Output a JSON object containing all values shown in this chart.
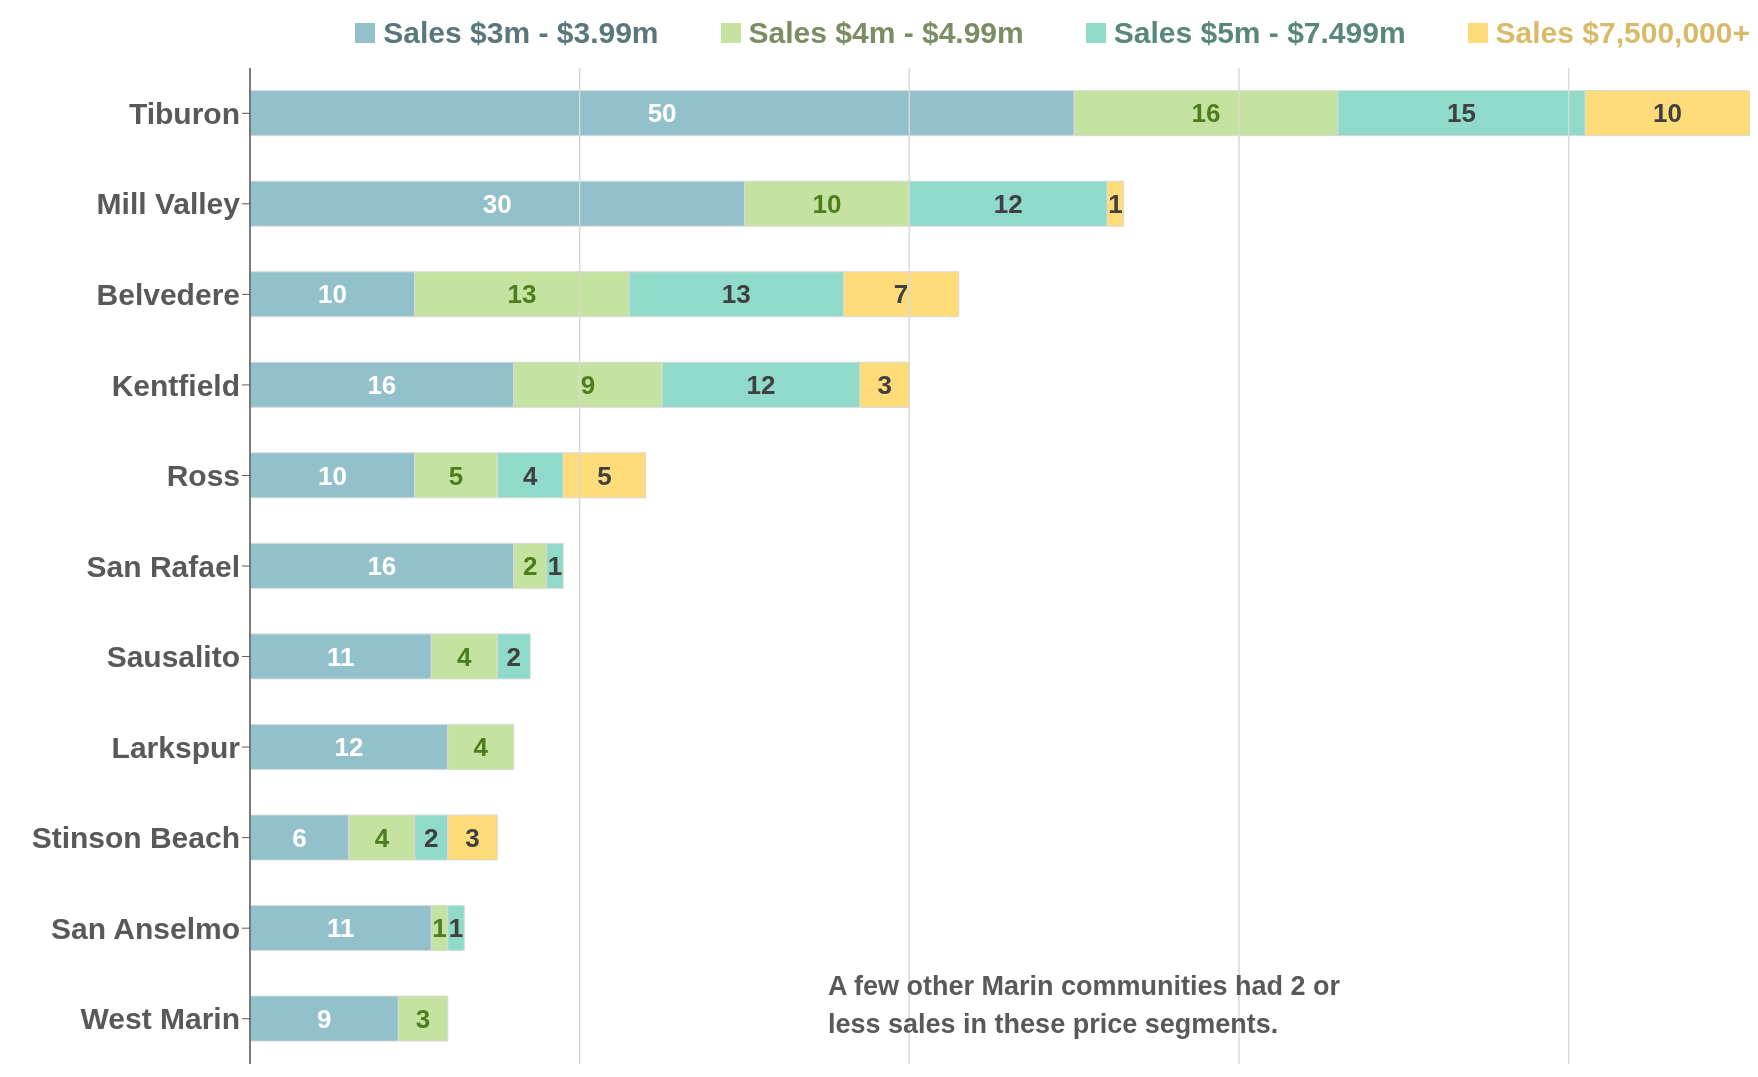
{
  "chart_data": {
    "type": "bar",
    "orientation": "horizontal",
    "stacked": true,
    "data_labels": true,
    "grid": "x",
    "tick_labels": "y",
    "legend": "top",
    "categories": [
      "Tiburon",
      "Mill Valley",
      "Belvedere",
      "Kentfield",
      "Ross",
      "San Rafael",
      "Sausalito",
      "Larkspur",
      "Stinson Beach",
      "San Anselmo",
      "West Marin"
    ],
    "series": [
      {
        "name": "Sales $3m - $3.99m",
        "color": "#92c0cb",
        "values": [
          50,
          30,
          10,
          16,
          10,
          16,
          11,
          12,
          6,
          11,
          9
        ]
      },
      {
        "name": "Sales $4m - $4.99m",
        "color": "#c5e3a0",
        "values": [
          16,
          10,
          13,
          9,
          5,
          2,
          4,
          4,
          4,
          1,
          3
        ]
      },
      {
        "name": "Sales $5m - $7.499m",
        "color": "#8fdac8",
        "values": [
          15,
          12,
          13,
          12,
          4,
          1,
          2,
          null,
          2,
          1,
          null
        ]
      },
      {
        "name": "Sales $7,500,000+",
        "color": "#fedc7a",
        "values": [
          10,
          1,
          7,
          3,
          5,
          null,
          null,
          null,
          3,
          null,
          null
        ]
      }
    ],
    "xlim": [
      0,
      91
    ],
    "xticks": [
      {
        "value": 0,
        "label": null
      },
      {
        "value": 20,
        "label": null
      },
      {
        "value": 40,
        "label": null
      },
      {
        "value": 60,
        "label": null
      },
      {
        "value": 80,
        "label": null
      }
    ],
    "annotations": [
      "A few other Marin communities had 2 or less sales in these price segments."
    ]
  }
}
